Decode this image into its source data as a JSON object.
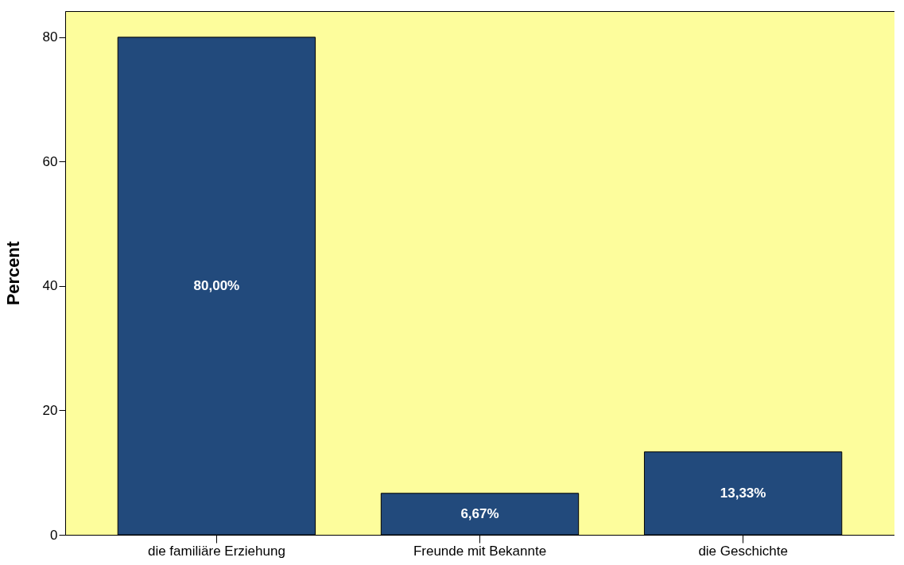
{
  "chart_data": {
    "type": "bar",
    "ylabel": "Percent",
    "categories": [
      "die familiäre Erziehung",
      "Freunde mit Bekannte",
      "die Geschichte"
    ],
    "values": [
      80,
      6.67,
      13.33
    ],
    "value_labels": [
      "80,00%",
      "6,67%",
      "13,33%"
    ],
    "color": "#224a7c",
    "ylim": [
      0,
      84.2
    ],
    "yticks": [
      0,
      20,
      40,
      60,
      80
    ],
    "grid": false
  }
}
